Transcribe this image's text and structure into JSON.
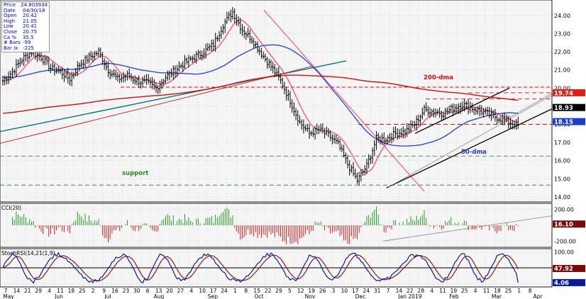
{
  "info_box": [
    {
      "label": "Price",
      "value": "24.803934"
    },
    {
      "label": "Date",
      "value": "04/30/18"
    },
    {
      "label": "Open",
      "value": "20.42"
    },
    {
      "label": "High",
      "value": "21.05"
    },
    {
      "label": "Low",
      "value": "20.41"
    },
    {
      "label": "Close",
      "value": "20.75"
    },
    {
      "label": "Ca %",
      "value": "35.5"
    },
    {
      "label": "# Bars",
      "value": "-99"
    },
    {
      "label": "Bar Ix",
      "value": "-225"
    }
  ],
  "colors": {
    "price_bars": "#000000",
    "ma_fast": "#ff3a7a",
    "ma_50": "#1f3fd0",
    "ma_200": "#cc1111",
    "long_trend": "#007a7a",
    "support": "#3a8a3a",
    "channel": "#000000",
    "cci_up": "#2a9a2a",
    "cci_down": "#cc2222",
    "stoch_fast": "#0a1a9a",
    "stoch_slow": "#8b1a1a",
    "panel_bg": "#f6f5f5",
    "grid": "#b8b8b8",
    "tag_red": "#e0201a",
    "tag_black": "#000000",
    "tag_blue": "#1a3fd0",
    "tag_cci": "#7a0a0a",
    "tag_stoch": "#7a0a0a"
  },
  "chart_data": [
    {
      "type": "line",
      "panel": "price",
      "subtype": "ohlc-bars",
      "y_ticks": [
        "24.00",
        "23.00",
        "22.00",
        "21.00",
        "20.00",
        "19.00",
        "18.00",
        "17.00",
        "16.00",
        "15.00",
        "14.00"
      ],
      "ylim": [
        13.8,
        24.7
      ],
      "x_month_labels": [
        "May",
        "Jun",
        "Jul",
        "Aug",
        "Sep",
        "Oct",
        "Nov",
        "Dec",
        "Jan 2019",
        "Feb",
        "Mar",
        "Apr"
      ],
      "x_day_labels": [
        "7",
        "14",
        "21",
        "29",
        "4",
        "11",
        "18",
        "25",
        "2",
        "9",
        "16",
        "23",
        "30",
        "6",
        "13",
        "20",
        "27",
        "4",
        "10",
        "17",
        "24",
        "1",
        "8",
        "15",
        "22",
        "29",
        "5",
        "12",
        "19",
        "26",
        "3",
        "10",
        "17",
        "24",
        "31",
        "7",
        "14",
        "22",
        "28",
        "4",
        "11",
        "19",
        "25",
        "4",
        "11",
        "18",
        "25",
        "1",
        "8"
      ],
      "weekly_closes": [
        20.4,
        20.9,
        21.6,
        22.0,
        21.7,
        21.1,
        20.9,
        20.5,
        21.3,
        21.7,
        22.0,
        21.0,
        20.5,
        20.7,
        20.4,
        20.3,
        20.0,
        20.6,
        21.0,
        21.4,
        21.7,
        22.0,
        22.4,
        23.5,
        24.2,
        23.2,
        22.7,
        21.9,
        21.2,
        20.4,
        19.3,
        18.1,
        17.5,
        17.7,
        17.4,
        16.9,
        15.8,
        14.9,
        15.7,
        17.2,
        17.2,
        17.5,
        17.6,
        18.0,
        18.8,
        18.7,
        18.6,
        18.9,
        19.1,
        18.9
      ],
      "series_labels": [
        "200-dma",
        "50-dma"
      ],
      "annotations": [
        "support"
      ],
      "levels": [
        {
          "value": 19.74,
          "label": "19.74",
          "style": "dashed"
        },
        {
          "value": 18.93,
          "label": "18.93",
          "style": "last-price"
        },
        {
          "value": 18.15,
          "label": "18.15",
          "style": "50-dma"
        },
        {
          "value": 20.05,
          "style": "dashed"
        },
        {
          "value": 19.4,
          "style": "dashed"
        },
        {
          "value": 18.0,
          "style": "dashed"
        },
        {
          "value": 16.25,
          "style": "dashed-support"
        },
        {
          "value": 14.65,
          "style": "dashed-support"
        }
      ]
    },
    {
      "type": "bar",
      "panel": "indicator",
      "label": "CCI(20)",
      "y_ticks": [
        "200.00",
        "-200.00"
      ],
      "ylim": [
        -260,
        260
      ],
      "last_value": "16.10"
    },
    {
      "type": "line",
      "panel": "indicator",
      "label": "StochRSI(14,21(1,9)",
      "y_ticks": [
        "100.00",
        "0.00"
      ],
      "ylim": [
        -5,
        105
      ],
      "last_values": [
        "47.92",
        "4.06"
      ]
    }
  ]
}
